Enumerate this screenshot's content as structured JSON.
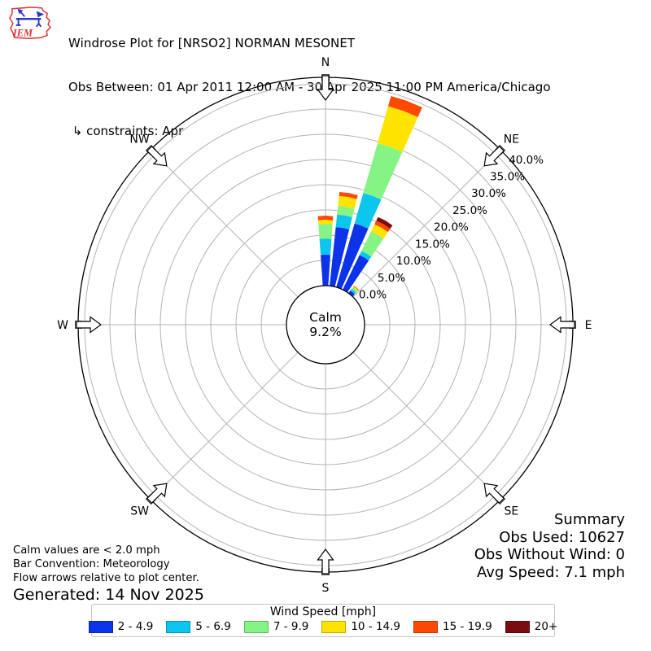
{
  "header": {
    "logo_text": "IEM",
    "title": "Windrose Plot for [NRSO2] NORMAN MESONET",
    "subtitle": "Obs Between: 01 Apr 2011 12:00 AM - 30 Apr 2025 11:00 PM America/Chicago",
    "constraints": " ↳ constraints: Apr"
  },
  "summary": {
    "heading": "Summary",
    "obs_used": "Obs Used: 10627",
    "obs_without_wind": "Obs Without Wind: 0",
    "avg_speed": "Avg Speed: 7.1 mph"
  },
  "notes": {
    "calm_note": "Calm values are < 2.0 mph",
    "convention_note": "Bar Convention: Meteorology",
    "arrows_note": "Flow arrows relative to plot center.",
    "generated": "Generated: 14 Nov 2025"
  },
  "legend": {
    "title": "Wind Speed [mph]"
  },
  "chart_data": {
    "type": "windrose-polar-bar",
    "units": "percent frequency of wind direction",
    "compass_labels": [
      "N",
      "NE",
      "E",
      "SE",
      "S",
      "SW",
      "W",
      "NW"
    ],
    "flow_arrows_point_to_center": true,
    "radial_ticks": {
      "labels": [
        "0.0%",
        "5.0%",
        "10.0%",
        "15.0%",
        "20.0%",
        "25.0%",
        "30.0%",
        "35.0%",
        "40.0%"
      ],
      "values": [
        0,
        5,
        10,
        15,
        20,
        25,
        30,
        35,
        40
      ],
      "axis_max": 41.3,
      "label_angle_deg": 48
    },
    "calm": {
      "label": "Calm",
      "percent_label": "9.2%",
      "value_percent": 9.2
    },
    "speed_bins": [
      {
        "label": "2 - 4.9",
        "color": "#0d33e8"
      },
      {
        "label": "5 - 6.9",
        "color": "#0cc6ee"
      },
      {
        "label": "7 - 9.9",
        "color": "#85f485"
      },
      {
        "label": "10 - 14.9",
        "color": "#ffe400"
      },
      {
        "label": "15 - 19.9",
        "color": "#ff4800"
      },
      {
        "label": "20+",
        "color": "#7a0d0d"
      }
    ],
    "direction_bin_width_deg": 10,
    "bar_width_deg": 8,
    "bars": [
      {
        "direction_deg": 0,
        "segments_pct": [
          6.1,
          3.2,
          2.9,
          0.8,
          0.8,
          0
        ],
        "total_pct": 13.8
      },
      {
        "direction_deg": 10,
        "segments_pct": [
          11.7,
          2.5,
          1.7,
          2.0,
          0.8,
          0
        ],
        "total_pct": 18.7
      },
      {
        "direction_deg": 20,
        "segments_pct": [
          13.1,
          6.3,
          10.3,
          7.6,
          2.1,
          0
        ],
        "total_pct": 39.4
      },
      {
        "direction_deg": 30,
        "segments_pct": [
          7.6,
          0.9,
          4.3,
          1.6,
          0.8,
          0.8
        ],
        "total_pct": 16.0
      },
      {
        "direction_deg": 40,
        "segments_pct": [
          0.6,
          0.4,
          0.4,
          0.25,
          0.15,
          0
        ],
        "total_pct": 1.9
      }
    ],
    "grid_color": "#b3b3b3"
  }
}
